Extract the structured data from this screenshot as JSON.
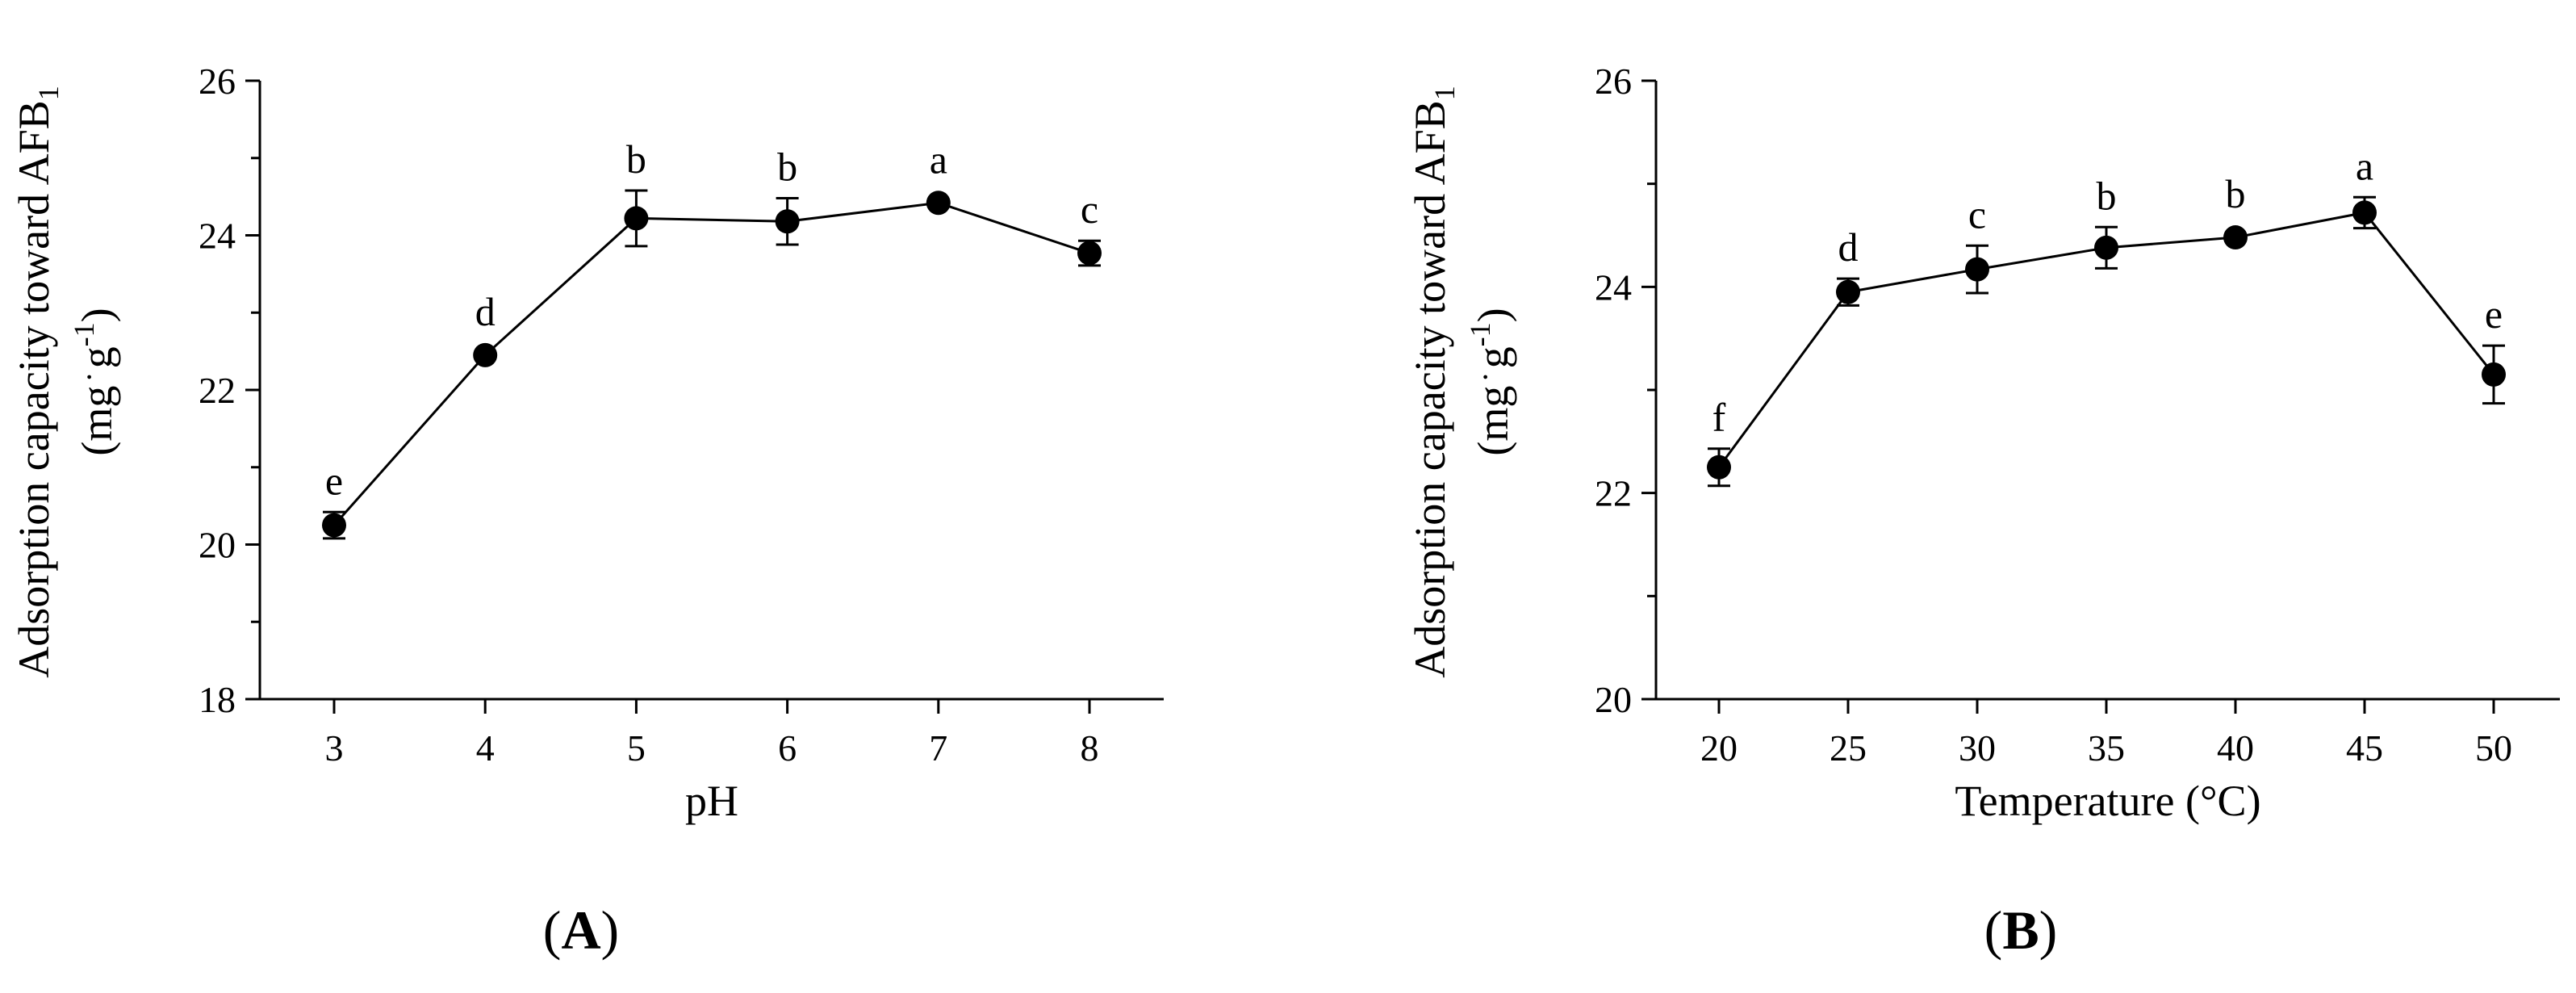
{
  "chart_data": [
    {
      "type": "line",
      "panel_label": "A",
      "x": [
        3,
        4,
        5,
        6,
        7,
        8
      ],
      "xticks": [
        "3",
        "4",
        "5",
        "6",
        "7",
        "8"
      ],
      "xlim": [
        2.5,
        8.5
      ],
      "xlabel": "pH",
      "ylabel_line1": "Adsorption capacity toward AFB",
      "ylabel_sub": "1",
      "ylabel_line2_open": "(mg",
      "ylabel_line2_unit": "g",
      "ylabel_line2_exp": "-1",
      "ylabel_line2_close": ")",
      "ylim": [
        18,
        26
      ],
      "yticks": [
        18,
        20,
        22,
        24,
        26
      ],
      "series": [
        {
          "values": [
            20.25,
            22.45,
            24.22,
            24.18,
            24.42,
            23.77
          ],
          "errors": [
            0.17,
            0.0,
            0.36,
            0.3,
            0.0,
            0.16
          ],
          "letters": [
            "e",
            "d",
            "b",
            "b",
            "a",
            "c"
          ],
          "color": "#000000"
        }
      ],
      "grid": false,
      "legend": "none"
    },
    {
      "type": "line",
      "panel_label": "B",
      "x": [
        20,
        25,
        30,
        35,
        40,
        45,
        50
      ],
      "xticks": [
        "20",
        "25",
        "30",
        "35",
        "40",
        "45",
        "50"
      ],
      "xlim": [
        17.5,
        52.5
      ],
      "xlabel": "Temperature (°C)",
      "ylabel_line1": "Adsorption capacity toward AFB",
      "ylabel_sub": "1",
      "ylabel_line2_open": "(mg",
      "ylabel_line2_unit": "g",
      "ylabel_line2_exp": "-1",
      "ylabel_line2_close": ")",
      "ylim": [
        20,
        26
      ],
      "yticks": [
        20,
        22,
        24,
        26
      ],
      "series": [
        {
          "values": [
            22.25,
            23.95,
            24.17,
            24.38,
            24.48,
            24.72,
            23.15
          ],
          "errors": [
            0.18,
            0.13,
            0.23,
            0.2,
            0.0,
            0.15,
            0.28
          ],
          "letters": [
            "f",
            "d",
            "c",
            "b",
            "b",
            "a",
            "e"
          ],
          "color": "#000000"
        }
      ],
      "grid": false,
      "legend": "none"
    }
  ]
}
